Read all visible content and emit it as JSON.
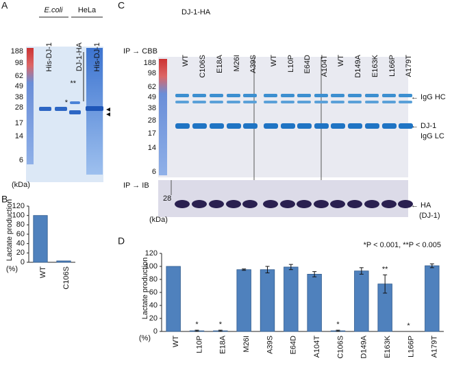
{
  "chart_data": [
    {
      "type": "bar",
      "panel": "B",
      "y_label": "Lactate production",
      "y_unit": "(%)",
      "categories": [
        "WT",
        "C106S"
      ],
      "values": [
        100,
        3
      ],
      "color": "#4f81bd",
      "ylim": [
        0,
        120
      ],
      "yticks": [
        0,
        20,
        40,
        60,
        80,
        100,
        120
      ]
    },
    {
      "type": "bar",
      "panel": "D",
      "note": "*P < 0.001, **P < 0.005",
      "y_label": "Lactate production",
      "y_unit": "(%)",
      "categories": [
        "WT",
        "L10P",
        "E18A",
        "M26I",
        "A39S",
        "E64D",
        "A104T",
        "C106S",
        "D149A",
        "E163K",
        "L166P",
        "A179T"
      ],
      "values": [
        100,
        1,
        1,
        95,
        95,
        99,
        88,
        1,
        93,
        73,
        0,
        101
      ],
      "errors": [
        null,
        1,
        1,
        1,
        5,
        4,
        4,
        1,
        5,
        14,
        null,
        3
      ],
      "significance": [
        null,
        "*",
        "*",
        null,
        null,
        null,
        null,
        "*",
        null,
        "**",
        "*",
        null
      ],
      "color": "#4f81bd",
      "ylim": [
        0,
        120
      ],
      "yticks": [
        0,
        20,
        40,
        60,
        80,
        100,
        120
      ]
    }
  ],
  "panels": {
    "A": {
      "label": "A",
      "groups": [
        "E.coli",
        "HeLa"
      ],
      "lanes": [
        "His-DJ-1",
        "DJ-1-HA",
        "His-DJ-1"
      ],
      "markers": [
        188,
        98,
        62,
        49,
        38,
        28,
        17,
        14,
        6
      ],
      "unit": "(kDa)",
      "double_star": "**",
      "star": "*"
    },
    "C": {
      "label": "C",
      "title": "DJ-1-HA",
      "lanes": [
        "WT",
        "C106S",
        "E18A",
        "M26I",
        "A39S",
        "WT",
        "L10P",
        "E64D",
        "A104T",
        "WT",
        "D149A",
        "E163K",
        "L166P",
        "A179T"
      ],
      "cbb_label": "IP → CBB",
      "ib_label": "IP → IB",
      "markers": [
        188,
        98,
        62,
        49,
        38,
        28,
        17,
        14,
        6
      ],
      "ib_marker": 28,
      "unit": "(kDa)",
      "right_labels": [
        "← IgG HC",
        "← DJ-1",
        "IgG LC",
        "← HA",
        "(DJ-1)"
      ]
    }
  }
}
